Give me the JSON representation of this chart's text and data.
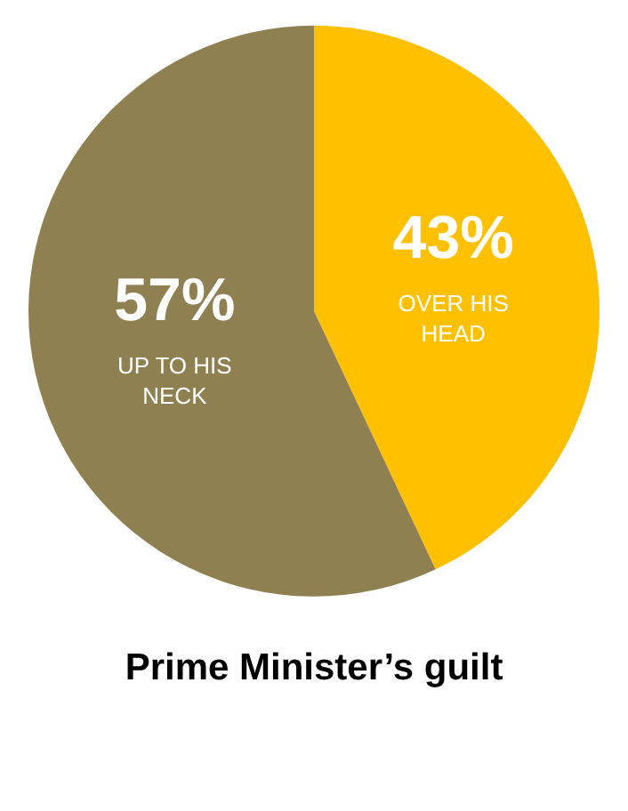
{
  "chart_data": {
    "type": "pie",
    "title": "Prime Minister’s guilt",
    "categories": [
      "OVER HIS HEAD",
      "UP TO HIS NECK"
    ],
    "values": [
      43,
      57
    ],
    "value_labels": [
      "43%",
      "57%"
    ],
    "colors": [
      "#ffc000",
      "#8f8052"
    ],
    "legend": false
  }
}
